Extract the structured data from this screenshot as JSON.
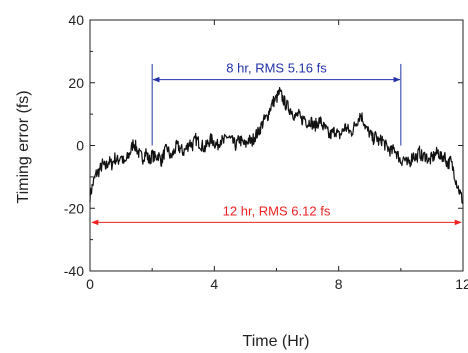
{
  "chart_data": {
    "type": "line",
    "title": "",
    "xlabel": "Time (Hr)",
    "ylabel": "Timing error (fs)",
    "xlim": [
      0,
      12
    ],
    "ylim": [
      -40,
      40
    ],
    "x_ticks": [
      0,
      4,
      8,
      12
    ],
    "y_ticks": [
      -40,
      -20,
      0,
      20,
      40
    ],
    "x_tick_labels": [
      "0",
      "4",
      "8",
      "12"
    ],
    "y_tick_labels": [
      "-40",
      "-20",
      "0",
      "20",
      "40"
    ],
    "grid": false,
    "legend": "none",
    "series": [
      {
        "color": "#111111",
        "x": [
          0,
          0.1,
          0.2,
          0.3,
          0.4,
          0.5,
          0.6,
          0.7,
          0.8,
          0.9,
          1.0,
          1.1,
          1.2,
          1.3,
          1.4,
          1.5,
          1.6,
          1.7,
          1.8,
          1.9,
          2.0,
          2.1,
          2.2,
          2.3,
          2.4,
          2.5,
          2.6,
          2.7,
          2.8,
          2.9,
          3.0,
          3.1,
          3.2,
          3.3,
          3.4,
          3.5,
          3.6,
          3.7,
          3.8,
          3.9,
          4.0,
          4.1,
          4.2,
          4.3,
          4.4,
          4.5,
          4.6,
          4.7,
          4.8,
          4.9,
          5.0,
          5.1,
          5.2,
          5.3,
          5.4,
          5.5,
          5.6,
          5.7,
          5.8,
          5.9,
          6.0,
          6.1,
          6.2,
          6.3,
          6.4,
          6.5,
          6.6,
          6.7,
          6.8,
          6.9,
          7.0,
          7.1,
          7.2,
          7.3,
          7.4,
          7.5,
          7.6,
          7.7,
          7.8,
          7.9,
          8.0,
          8.1,
          8.2,
          8.3,
          8.4,
          8.5,
          8.6,
          8.7,
          8.8,
          8.9,
          9.0,
          9.1,
          9.2,
          9.3,
          9.4,
          9.5,
          9.6,
          9.7,
          9.8,
          9.9,
          10.0,
          10.1,
          10.2,
          10.3,
          10.4,
          10.5,
          10.6,
          10.7,
          10.8,
          10.9,
          11.0,
          11.1,
          11.2,
          11.3,
          11.4,
          11.5,
          11.6,
          11.7,
          11.8,
          11.9,
          12.0
        ],
        "values": [
          -16,
          -12,
          -9,
          -8,
          -6,
          -7,
          -5,
          -6,
          -4,
          -5,
          -3,
          -6,
          -4,
          -2,
          1,
          -1,
          -3,
          -4,
          -2,
          -5,
          -3,
          -4,
          -3,
          -5,
          -2,
          -1,
          -4,
          -2,
          0,
          -1,
          -2,
          -1,
          1,
          0,
          2,
          1,
          0,
          -1,
          1,
          2,
          1,
          0,
          2,
          1,
          3,
          2,
          1,
          0,
          2,
          1,
          0,
          2,
          1,
          3,
          4,
          6,
          8,
          9,
          12,
          14,
          15,
          17,
          15,
          13,
          12,
          11,
          9,
          10,
          8,
          9,
          7,
          8,
          6,
          7,
          8,
          6,
          5,
          3,
          4,
          5,
          3,
          4,
          6,
          5,
          4,
          6,
          8,
          10,
          8,
          5,
          4,
          2,
          3,
          1,
          2,
          0,
          -1,
          -2,
          -1,
          -3,
          -5,
          -4,
          -6,
          -5,
          -3,
          -4,
          -2,
          -4,
          -3,
          -5,
          -4,
          -3,
          -2,
          -4,
          -3,
          -6,
          -5,
          -8,
          -12,
          -15,
          -18
        ]
      }
    ],
    "annotations": [
      {
        "label": "8 hr, RMS 5.16 fs",
        "color": "#2233aa",
        "x_start": 2,
        "x_end": 10,
        "y": 21,
        "bracket_y_top": 26,
        "bracket_y_bottom": 0
      },
      {
        "label": "12 hr, RMS 6.12 fs",
        "color": "#ee2222",
        "x_start": 0,
        "x_end": 12,
        "y": -24.5
      }
    ]
  }
}
